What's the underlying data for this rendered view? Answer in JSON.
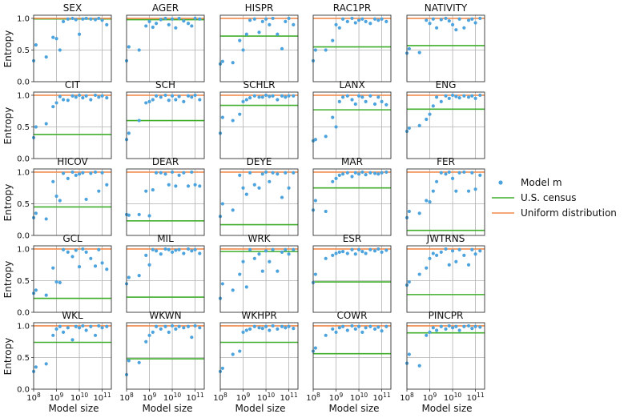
{
  "chart_data": {
    "type": "scatter",
    "layout": "5x5 grid of small multiples",
    "xlabel": "Model size",
    "ylabel": "Entropy",
    "x_scale": "log10",
    "xlim": [
      8,
      11.4
    ],
    "ylim": [
      0,
      1.05
    ],
    "x_ticks": [
      "10^8",
      "10^9",
      "10^10",
      "10^11"
    ],
    "x_tick_values": [
      8,
      9,
      10,
      11
    ],
    "y_ticks": [
      "0.0",
      "0.5",
      "1.0"
    ],
    "y_tick_values": [
      0,
      0.5,
      1
    ],
    "grid": true,
    "colors": {
      "model": "#4ca3dd",
      "census": "#3fae2a",
      "uniform": "#f08a4b",
      "grid": "#b0b0b0",
      "frame": "#333333"
    },
    "legend": {
      "placement": "right",
      "items": [
        {
          "label": "Model m",
          "kind": "dot",
          "key": "model"
        },
        {
          "label": "U.S. census",
          "kind": "line",
          "key": "census"
        },
        {
          "label": "Uniform distribution",
          "kind": "line",
          "key": "uniform"
        }
      ]
    },
    "x_log10": [
      8.0,
      8.1,
      8.55,
      8.85,
      9.0,
      9.15,
      9.3,
      9.5,
      9.7,
      9.85,
      10.0,
      10.15,
      10.3,
      10.5,
      10.7,
      10.85,
      11.0,
      11.2
    ],
    "panels": [
      {
        "title": "SEX",
        "census": 0.99,
        "uniform": 1.0,
        "y": [
          0.33,
          0.58,
          0.39,
          0.7,
          0.68,
          0.5,
          0.95,
          0.99,
          1.0,
          0.98,
          0.75,
          0.99,
          1.0,
          0.99,
          0.98,
          1.0,
          0.97,
          0.9
        ]
      },
      {
        "title": "AGER",
        "census": 0.98,
        "uniform": 1.0,
        "y": [
          0.33,
          0.55,
          0.5,
          0.88,
          0.95,
          0.86,
          0.92,
          0.98,
          1.0,
          0.9,
          0.99,
          0.85,
          1.0,
          0.96,
          0.92,
          0.88,
          1.0,
          0.99
        ]
      },
      {
        "title": "HISPR",
        "census": 0.72,
        "uniform": 1.0,
        "y": [
          0.28,
          0.32,
          0.3,
          0.65,
          0.5,
          0.75,
          0.97,
          0.99,
          0.78,
          0.95,
          0.99,
          0.9,
          1.0,
          0.75,
          0.52,
          0.95,
          1.0,
          0.9
        ]
      },
      {
        "title": "RAC1PR",
        "census": 0.55,
        "uniform": 1.0,
        "y": [
          0.33,
          0.5,
          0.5,
          0.65,
          0.9,
          0.85,
          0.99,
          0.95,
          1.0,
          0.93,
          0.97,
          0.99,
          0.95,
          0.92,
          0.99,
          0.97,
          0.99,
          0.95
        ]
      },
      {
        "title": "NATIVITY",
        "census": 0.57,
        "uniform": 1.0,
        "y": [
          0.45,
          0.52,
          0.46,
          0.97,
          0.92,
          0.99,
          0.85,
          0.98,
          1.0,
          0.96,
          0.9,
          0.82,
          0.99,
          0.85,
          0.97,
          0.99,
          0.93,
          1.0
        ]
      },
      {
        "title": "CIT",
        "census": 0.38,
        "uniform": 1.0,
        "y": [
          0.33,
          0.5,
          0.55,
          0.82,
          0.88,
          0.98,
          0.93,
          0.92,
          0.99,
          0.97,
          1.0,
          0.96,
          0.99,
          0.93,
          1.0,
          0.97,
          0.99,
          0.96
        ]
      },
      {
        "title": "SCH",
        "census": 0.6,
        "uniform": 1.0,
        "y": [
          0.3,
          0.4,
          0.6,
          0.88,
          0.9,
          0.93,
          0.99,
          0.97,
          1.0,
          0.92,
          0.99,
          0.93,
          0.98,
          0.9,
          0.99,
          0.97,
          1.0,
          0.93
        ]
      },
      {
        "title": "SCHLR",
        "census": 0.84,
        "uniform": 1.0,
        "y": [
          0.4,
          0.65,
          0.6,
          0.7,
          0.9,
          0.93,
          0.96,
          0.99,
          0.97,
          0.97,
          1.0,
          0.98,
          0.99,
          0.93,
          0.99,
          0.97,
          0.99,
          0.99
        ]
      },
      {
        "title": "LANX",
        "census": 0.77,
        "uniform": 1.0,
        "y": [
          0.28,
          0.3,
          0.35,
          0.65,
          0.5,
          0.9,
          0.97,
          0.99,
          0.93,
          0.86,
          0.99,
          0.97,
          0.9,
          0.99,
          0.86,
          0.97,
          0.9,
          0.85
        ]
      },
      {
        "title": "ENG",
        "census": 0.78,
        "uniform": 1.0,
        "y": [
          0.43,
          0.48,
          0.52,
          0.62,
          0.7,
          0.83,
          0.97,
          0.9,
          0.99,
          0.95,
          1.0,
          0.98,
          0.96,
          0.99,
          0.97,
          0.99,
          0.95,
          1.0
        ]
      },
      {
        "title": "HICOV",
        "census": 0.45,
        "uniform": 1.0,
        "y": [
          0.28,
          0.35,
          0.26,
          0.85,
          0.62,
          0.55,
          0.98,
          0.9,
          1.0,
          0.95,
          0.97,
          0.99,
          0.57,
          0.98,
          1.0,
          0.7,
          0.99,
          0.8
        ]
      },
      {
        "title": "DEAR",
        "census": 0.23,
        "uniform": 1.0,
        "y": [
          0.33,
          0.32,
          0.33,
          0.7,
          0.31,
          0.72,
          0.99,
          0.99,
          0.97,
          0.8,
          1.0,
          0.78,
          0.95,
          0.99,
          0.78,
          1.0,
          0.8,
          0.78
        ]
      },
      {
        "title": "DEYE",
        "census": 0.17,
        "uniform": 1.0,
        "y": [
          0.3,
          0.5,
          0.4,
          0.95,
          0.75,
          0.65,
          0.99,
          0.8,
          0.75,
          0.97,
          1.0,
          0.85,
          0.99,
          0.97,
          0.6,
          0.99,
          0.75,
          0.99
        ]
      },
      {
        "title": "MAR",
        "census": 0.75,
        "uniform": 1.0,
        "y": [
          0.4,
          0.55,
          0.38,
          0.85,
          0.9,
          0.95,
          0.97,
          0.99,
          0.93,
          0.99,
          0.97,
          1.0,
          0.96,
          0.99,
          0.98,
          0.97,
          0.99,
          1.0
        ]
      },
      {
        "title": "FER",
        "census": 0.08,
        "uniform": 1.0,
        "y": [
          0.28,
          0.38,
          0.35,
          0.55,
          0.53,
          0.7,
          0.85,
          0.99,
          0.97,
          1.0,
          0.9,
          0.7,
          0.99,
          1.0,
          0.7,
          0.99,
          0.73,
          0.95
        ]
      },
      {
        "title": "GCL",
        "census": 0.22,
        "uniform": 1.0,
        "y": [
          0.3,
          0.35,
          0.27,
          0.7,
          0.48,
          0.47,
          0.99,
          0.95,
          0.88,
          0.98,
          0.72,
          1.0,
          0.95,
          0.85,
          0.73,
          0.99,
          0.78,
          0.68
        ]
      },
      {
        "title": "MIL",
        "census": 0.24,
        "uniform": 1.0,
        "y": [
          0.45,
          0.55,
          0.58,
          0.9,
          0.75,
          0.99,
          0.97,
          0.92,
          1.0,
          0.99,
          0.95,
          0.98,
          0.99,
          0.93,
          1.0,
          0.97,
          0.99,
          0.93
        ]
      },
      {
        "title": "WRK",
        "census": 0.96,
        "uniform": 1.0,
        "y": [
          0.22,
          0.45,
          0.35,
          0.6,
          0.8,
          0.4,
          0.99,
          0.85,
          0.92,
          0.65,
          0.97,
          0.8,
          0.99,
          0.65,
          0.95,
          0.99,
          0.92,
          0.99
        ]
      },
      {
        "title": "ESR",
        "census": 0.48,
        "uniform": 1.0,
        "y": [
          0.47,
          0.6,
          0.85,
          0.9,
          0.93,
          0.95,
          0.96,
          0.93,
          0.99,
          0.92,
          0.99,
          0.96,
          0.93,
          0.99,
          0.97,
          1.0,
          0.95,
          0.98
        ]
      },
      {
        "title": "JWTRNS",
        "census": 0.28,
        "uniform": 1.0,
        "y": [
          0.43,
          0.48,
          0.6,
          0.7,
          0.85,
          0.93,
          0.9,
          0.95,
          1.0,
          0.75,
          0.97,
          0.8,
          0.99,
          0.9,
          0.75,
          0.99,
          0.92,
          0.97
        ]
      },
      {
        "title": "WKL",
        "census": 0.74,
        "uniform": 1.0,
        "y": [
          0.28,
          0.35,
          0.4,
          0.85,
          0.95,
          0.99,
          0.9,
          0.97,
          0.78,
          0.99,
          0.97,
          1.0,
          0.93,
          0.99,
          0.85,
          1.0,
          0.97,
          0.99
        ]
      },
      {
        "title": "WKWN",
        "census": 0.48,
        "uniform": 1.0,
        "y": [
          0.23,
          0.45,
          0.42,
          0.75,
          0.85,
          0.9,
          0.99,
          0.95,
          0.99,
          0.9,
          1.0,
          0.95,
          0.99,
          0.97,
          0.99,
          0.82,
          1.0,
          0.97
        ]
      },
      {
        "title": "WKHPR",
        "census": 0.74,
        "uniform": 1.0,
        "y": [
          0.28,
          0.33,
          0.55,
          0.6,
          0.9,
          0.93,
          0.95,
          0.99,
          0.97,
          0.96,
          0.99,
          0.93,
          1.0,
          0.95,
          0.99,
          0.97,
          0.99,
          0.96
        ]
      },
      {
        "title": "COWR",
        "census": 0.56,
        "uniform": 1.0,
        "y": [
          0.6,
          0.65,
          0.85,
          0.95,
          0.9,
          0.97,
          0.99,
          0.93,
          1.0,
          0.95,
          0.99,
          0.9,
          0.97,
          0.99,
          0.95,
          0.98,
          0.92,
          0.99
        ]
      },
      {
        "title": "PINCPR",
        "census": 0.89,
        "uniform": 1.0,
        "y": [
          0.41,
          0.55,
          0.37,
          0.85,
          0.9,
          0.97,
          0.93,
          0.99,
          0.95,
          1.0,
          0.97,
          0.99,
          0.93,
          0.99,
          1.0,
          0.96,
          0.99,
          0.98
        ]
      }
    ]
  }
}
